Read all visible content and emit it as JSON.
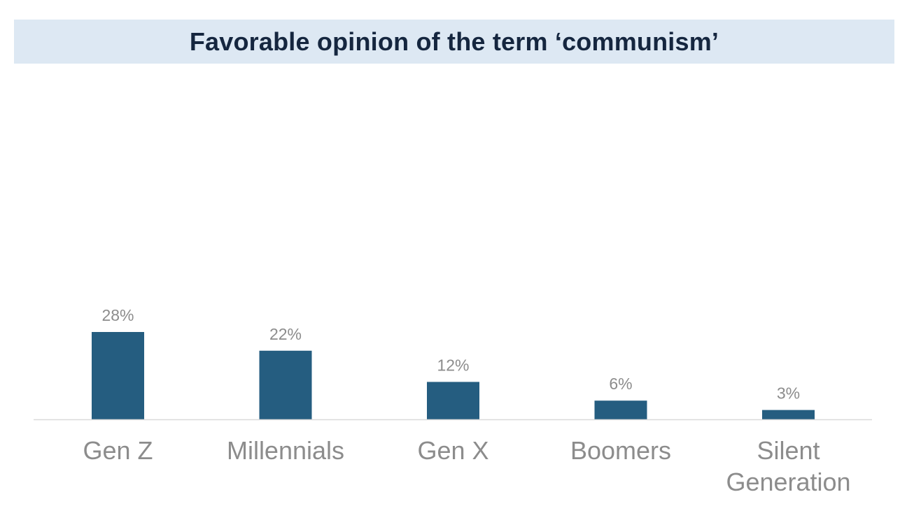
{
  "chart_data": {
    "type": "bar",
    "title": "Favorable opinion of the term ‘communism’",
    "categories": [
      [
        "Gen Z"
      ],
      [
        "Millennials"
      ],
      [
        "Gen X"
      ],
      [
        "Boomers"
      ],
      [
        "Silent",
        "Generation"
      ]
    ],
    "values": [
      28,
      22,
      12,
      6,
      3
    ],
    "value_labels": [
      "28%",
      "22%",
      "12%",
      "6%",
      "3%"
    ],
    "unit": "%",
    "bar_color": "#255d80",
    "label_color": "#8c8c8c",
    "axis_color": "#d9d9d9",
    "grid": false,
    "legend": "none"
  }
}
